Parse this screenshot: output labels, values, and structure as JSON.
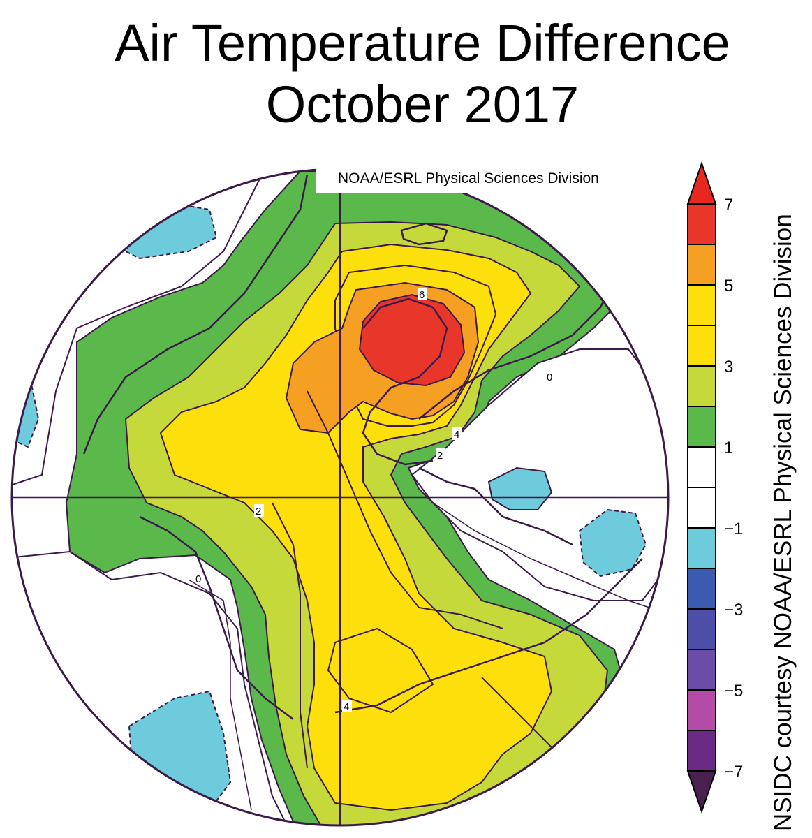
{
  "title": {
    "line1": "Air Temperature Difference",
    "line2": "October 2017"
  },
  "map": {
    "projection": "north-polar-stereographic",
    "source_label": "NOAA/ESRL Physical Sciences Division",
    "contour_labels": [
      "6",
      "4",
      "2",
      "2",
      "4",
      "0",
      "0"
    ],
    "colors": {
      "land_outline": "#3b1a4a",
      "contour": "#3b1a4a"
    }
  },
  "colorbar": {
    "tick_labels": [
      "7",
      "5",
      "3",
      "1",
      "−1",
      "−3",
      "−5",
      "−7"
    ],
    "band_colors": [
      "#e8362b",
      "#f5a023",
      "#fde00b",
      "#fde00b",
      "#c6d93b",
      "#5bb84a",
      "#ffffff",
      "#ffffff",
      "#6ecbdb",
      "#3b5bb0",
      "#4c4ea8",
      "#6b4ca6",
      "#b44ba6",
      "#6b2a84"
    ],
    "top_arrow_color": "#e8281e",
    "bottom_arrow_color": "#4a2050"
  },
  "credit": "NSIDC courtesy NOAA/ESRL Physical Sciences Division"
}
